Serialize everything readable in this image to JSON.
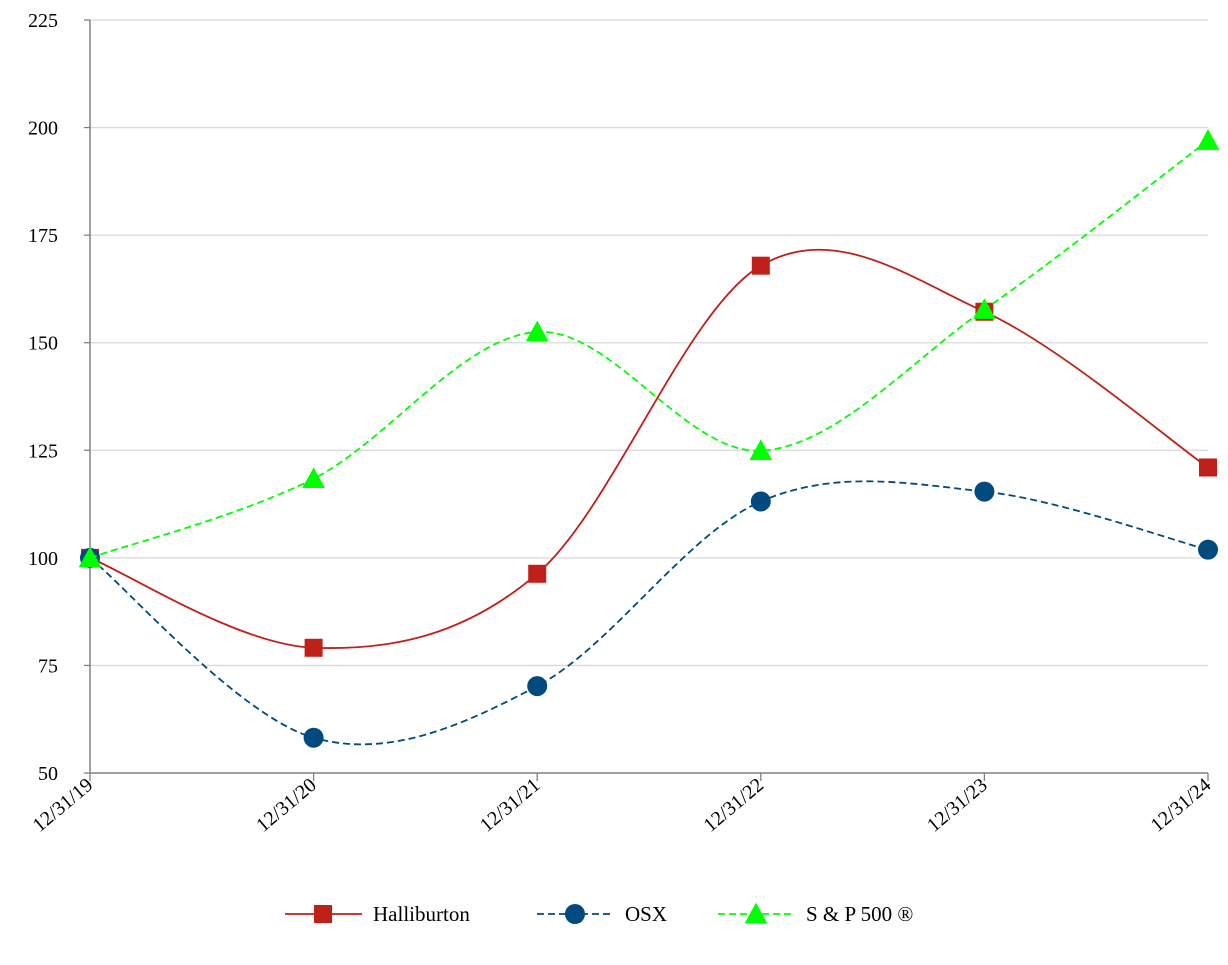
{
  "chart_data": {
    "type": "line",
    "title": "",
    "xlabel": "",
    "ylabel": "",
    "categories": [
      "12/31/19",
      "12/31/20",
      "12/31/21",
      "12/31/22",
      "12/31/23",
      "12/31/24"
    ],
    "ylim": [
      50,
      225
    ],
    "yticks": [
      50,
      75,
      100,
      125,
      150,
      175,
      200,
      225
    ],
    "grid": true,
    "legend_position": "bottom",
    "series": [
      {
        "name": "Halliburton",
        "color": "#C0201A",
        "marker": "square",
        "dash": "solid",
        "values": [
          100,
          79.1,
          96.3,
          167.9,
          157.2,
          121.0
        ]
      },
      {
        "name": "OSX",
        "color": "#004A80",
        "marker": "circle",
        "dash": "dashed",
        "values": [
          100,
          58.2,
          70.2,
          113.1,
          115.4,
          101.9
        ]
      },
      {
        "name": "S & P 500 ®",
        "color": "#00FF00",
        "marker": "triangle",
        "dash": "dashed",
        "values": [
          100,
          118.4,
          152.5,
          124.9,
          157.7,
          197.0
        ]
      }
    ]
  }
}
